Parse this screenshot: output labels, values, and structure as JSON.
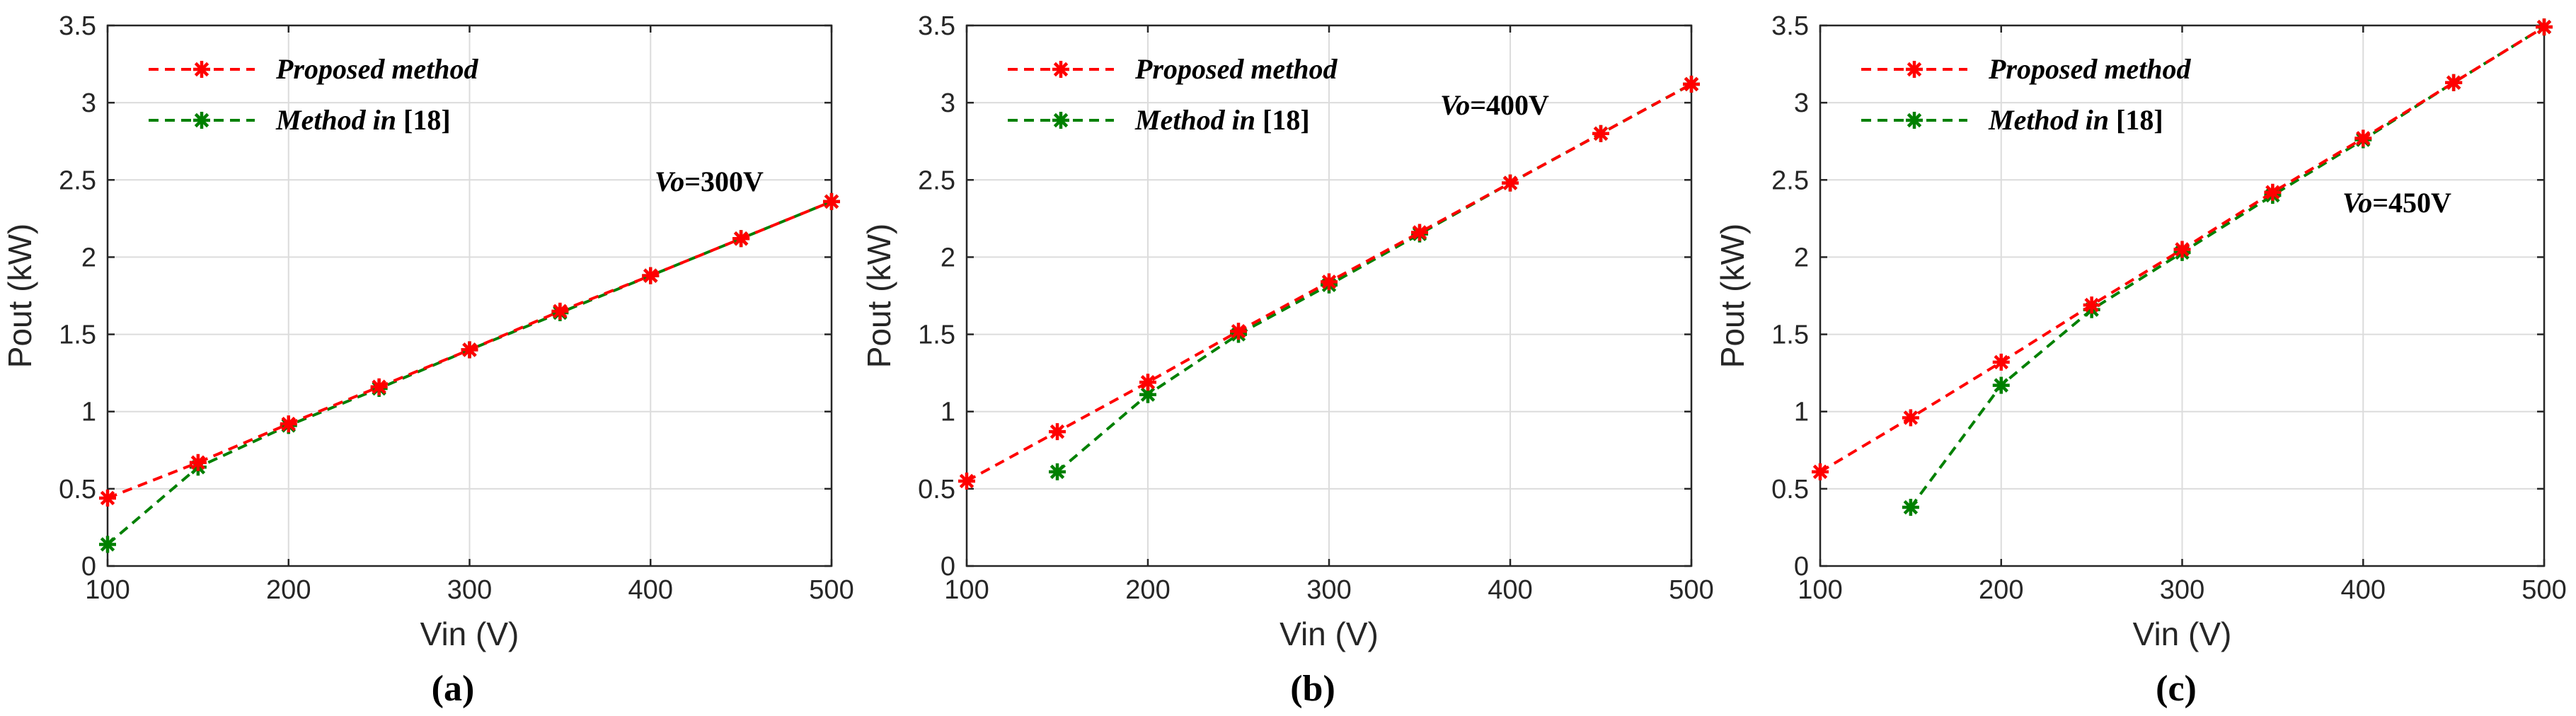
{
  "chart_data": [
    {
      "type": "line",
      "caption": "(a)",
      "xlabel": "Vin (V)",
      "ylabel": "Pout (kW)",
      "xlim": [
        100,
        500
      ],
      "ylim": [
        0,
        3.5
      ],
      "xticks": [
        "100",
        "200",
        "300",
        "400",
        "500"
      ],
      "yticks": [
        "0",
        "0.5",
        "1",
        "1.5",
        "2",
        "2.5",
        "3",
        "3.5"
      ],
      "grid": true,
      "legend_position": "top-left",
      "annotation": {
        "var": "Vo",
        "rest": "=300V"
      },
      "series": [
        {
          "name": "Proposed method",
          "ref": "",
          "color": "#ff0000",
          "x": [
            100,
            150,
            200,
            250,
            300,
            350,
            400,
            450,
            500
          ],
          "y": [
            0.44,
            0.67,
            0.92,
            1.16,
            1.4,
            1.65,
            1.88,
            2.12,
            2.36
          ]
        },
        {
          "name": "Method in ",
          "ref": "[18]",
          "color": "#008000",
          "x": [
            100,
            150,
            200,
            250,
            300,
            350,
            400,
            450,
            500
          ],
          "y": [
            0.14,
            0.64,
            0.91,
            1.15,
            1.4,
            1.64,
            1.88,
            2.12,
            2.36
          ]
        }
      ]
    },
    {
      "type": "line",
      "caption": "(b)",
      "xlabel": "Vin (V)",
      "ylabel": "Pout (kW)",
      "xlim": [
        100,
        500
      ],
      "ylim": [
        0,
        3.5
      ],
      "xticks": [
        "100",
        "200",
        "300",
        "400",
        "500"
      ],
      "yticks": [
        "0",
        "0.5",
        "1",
        "1.5",
        "2",
        "2.5",
        "3",
        "3.5"
      ],
      "grid": true,
      "legend_position": "top-left",
      "annotation": {
        "var": "Vo",
        "rest": "=400V"
      },
      "series": [
        {
          "name": "Proposed method",
          "ref": "",
          "color": "#ff0000",
          "x": [
            100,
            150,
            200,
            250,
            300,
            350,
            400,
            450,
            500
          ],
          "y": [
            0.55,
            0.87,
            1.19,
            1.52,
            1.84,
            2.16,
            2.48,
            2.8,
            3.12
          ]
        },
        {
          "name": "Method in ",
          "ref": "[18]",
          "color": "#008000",
          "x": [
            150,
            200,
            250,
            300,
            350,
            400,
            450,
            500
          ],
          "y": [
            0.61,
            1.11,
            1.5,
            1.82,
            2.15,
            2.48,
            2.8,
            3.12
          ]
        }
      ]
    },
    {
      "type": "line",
      "caption": "(c)",
      "xlabel": "Vin (V)",
      "ylabel": "Pout (kW)",
      "xlim": [
        100,
        500
      ],
      "ylim": [
        0,
        3.5
      ],
      "xticks": [
        "100",
        "200",
        "300",
        "400",
        "500"
      ],
      "yticks": [
        "0",
        "0.5",
        "1",
        "1.5",
        "2",
        "2.5",
        "3",
        "3.5"
      ],
      "grid": true,
      "legend_position": "top-left",
      "annotation": {
        "var": "Vo",
        "rest": "=450V"
      },
      "series": [
        {
          "name": "Proposed method",
          "ref": "",
          "color": "#ff0000",
          "x": [
            100,
            150,
            200,
            250,
            300,
            350,
            400,
            450,
            500
          ],
          "y": [
            0.61,
            0.96,
            1.32,
            1.69,
            2.05,
            2.42,
            2.77,
            3.13,
            3.49
          ]
        },
        {
          "name": "Method in ",
          "ref": "[18]",
          "color": "#008000",
          "x": [
            150,
            200,
            250,
            300,
            350,
            400,
            450,
            500
          ],
          "y": [
            0.38,
            1.17,
            1.66,
            2.03,
            2.4,
            2.76,
            3.13,
            3.49
          ]
        }
      ]
    }
  ]
}
